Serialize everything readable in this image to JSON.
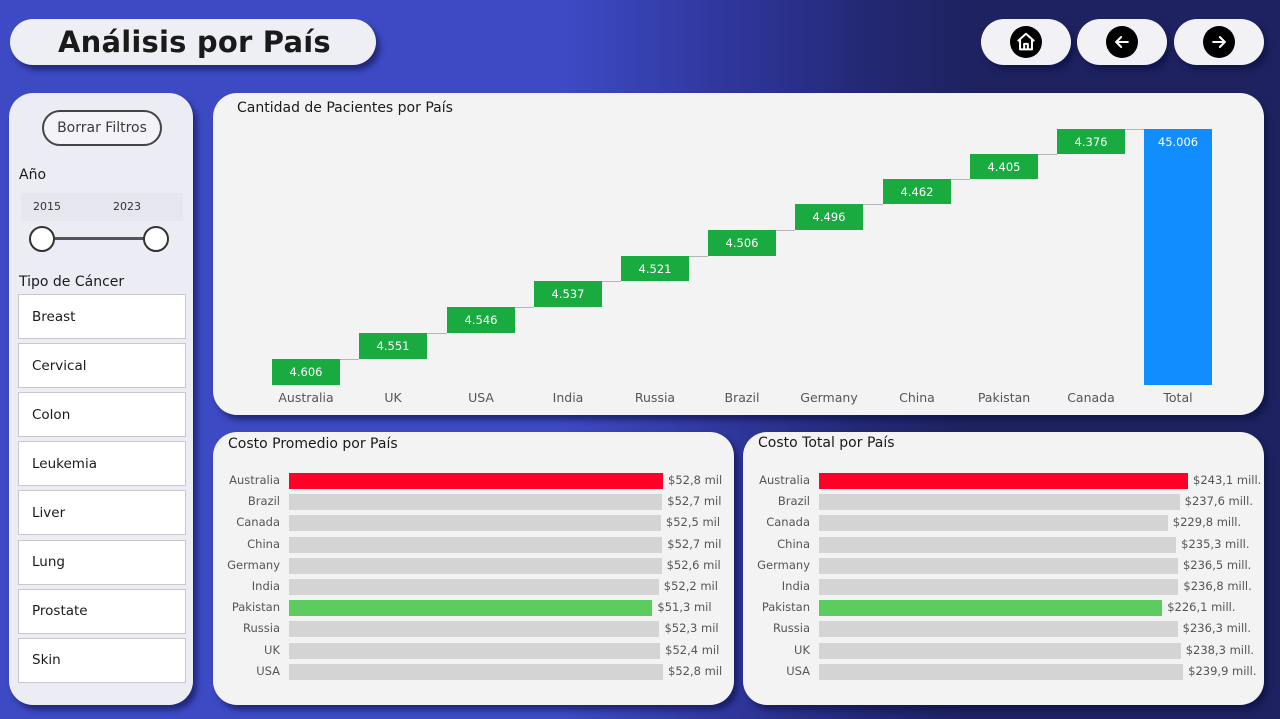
{
  "header": {
    "title": "Análisis por País",
    "nav": [
      {
        "name": "home-button",
        "icon": "home-icon"
      },
      {
        "name": "back-button",
        "icon": "arrow-left-icon"
      },
      {
        "name": "forward-button",
        "icon": "arrow-right-icon"
      }
    ]
  },
  "filters": {
    "clear_label": "Borrar Filtros",
    "year_label": "Año",
    "year_min": "2015",
    "year_max": "2023",
    "cancer_label": "Tipo de Cáncer",
    "cancer_types": [
      "Breast",
      "Cervical",
      "Colon",
      "Leukemia",
      "Liver",
      "Lung",
      "Prostate",
      "Skin"
    ]
  },
  "colors": {
    "increase": "#1aab40",
    "total": "#118dff",
    "highest": "#ff0028",
    "lowest": "#5ccc61",
    "neutral": "#d4d4d4"
  },
  "chart_data": [
    {
      "type": "bar",
      "subtype": "waterfall",
      "title": "Cantidad de Pacientes por País",
      "categories": [
        "Australia",
        "UK",
        "USA",
        "India",
        "Russia",
        "Brazil",
        "Germany",
        "China",
        "Pakistan",
        "Canada",
        "Total"
      ],
      "values": [
        4606,
        4551,
        4546,
        4537,
        4521,
        4506,
        4496,
        4462,
        4405,
        4376,
        45006
      ],
      "labels": [
        "4.606",
        "4.551",
        "4.546",
        "4.537",
        "4.521",
        "4.506",
        "4.496",
        "4.462",
        "4.405",
        "4.376",
        "45.006"
      ],
      "xlabel": "",
      "ylabel": "",
      "grid": false
    },
    {
      "type": "bar",
      "orientation": "horizontal",
      "title": "Costo Promedio por País",
      "categories": [
        "Australia",
        "Brazil",
        "Canada",
        "China",
        "Germany",
        "India",
        "Pakistan",
        "Russia",
        "UK",
        "USA"
      ],
      "values": [
        52.8,
        52.7,
        52.5,
        52.7,
        52.6,
        52.2,
        51.3,
        52.3,
        52.4,
        52.8
      ],
      "labels": [
        "$52,8 mil",
        "$52,7 mil",
        "$52,5 mil",
        "$52,7 mil",
        "$52,6 mil",
        "$52,2 mil",
        "$51,3 mil",
        "$52,3 mil",
        "$52,4 mil",
        "$52,8 mil"
      ],
      "highlight": {
        "Australia": "highest",
        "Pakistan": "lowest"
      },
      "unit": "mil"
    },
    {
      "type": "bar",
      "orientation": "horizontal",
      "title": "Costo Total por País",
      "categories": [
        "Australia",
        "Brazil",
        "Canada",
        "China",
        "Germany",
        "India",
        "Pakistan",
        "Russia",
        "UK",
        "USA"
      ],
      "values": [
        243.1,
        237.6,
        229.8,
        235.3,
        236.5,
        236.8,
        226.1,
        236.3,
        238.3,
        239.9
      ],
      "labels": [
        "$243,1 mill.",
        "$237,6 mill.",
        "$229,8 mill.",
        "$235,3 mill.",
        "$236,5 mill.",
        "$236,8 mill.",
        "$226,1 mill.",
        "$236,3 mill.",
        "$238,3 mill.",
        "$239,9 mill."
      ],
      "highlight": {
        "Australia": "highest",
        "Pakistan": "lowest"
      },
      "unit": "mill."
    }
  ]
}
